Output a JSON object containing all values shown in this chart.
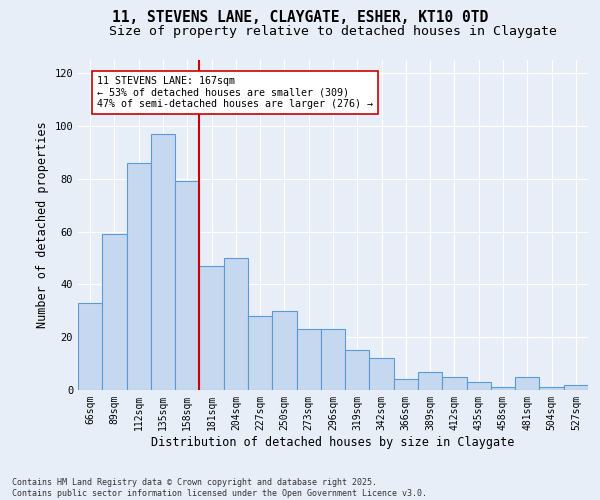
{
  "title_line1": "11, STEVENS LANE, CLAYGATE, ESHER, KT10 0TD",
  "title_line2": "Size of property relative to detached houses in Claygate",
  "xlabel": "Distribution of detached houses by size in Claygate",
  "ylabel": "Number of detached properties",
  "categories": [
    "66sqm",
    "89sqm",
    "112sqm",
    "135sqm",
    "158sqm",
    "181sqm",
    "204sqm",
    "227sqm",
    "250sqm",
    "273sqm",
    "296sqm",
    "319sqm",
    "342sqm",
    "366sqm",
    "389sqm",
    "412sqm",
    "435sqm",
    "458sqm",
    "481sqm",
    "504sqm",
    "527sqm"
  ],
  "values": [
    33,
    59,
    86,
    97,
    79,
    47,
    50,
    28,
    30,
    23,
    23,
    15,
    12,
    4,
    7,
    5,
    3,
    1,
    5,
    1,
    2
  ],
  "bar_color": "#c5d8f0",
  "bar_edge_color": "#5b9bd5",
  "bar_edge_width": 0.8,
  "vline_x": 4.5,
  "vline_color": "#cc0000",
  "vline_label": "11 STEVENS LANE: 167sqm",
  "annotation_line2": "← 53% of detached houses are smaller (309)",
  "annotation_line3": "47% of semi-detached houses are larger (276) →",
  "annotation_box_color": "#ffffff",
  "annotation_box_edge": "#cc0000",
  "ylim": [
    0,
    125
  ],
  "yticks": [
    0,
    20,
    40,
    60,
    80,
    100,
    120
  ],
  "bg_color": "#e8eef8",
  "grid_color": "#ffffff",
  "footnote_line1": "Contains HM Land Registry data © Crown copyright and database right 2025.",
  "footnote_line2": "Contains public sector information licensed under the Open Government Licence v3.0.",
  "title_fontsize": 10.5,
  "subtitle_fontsize": 9.5,
  "tick_fontsize": 7,
  "label_fontsize": 8.5,
  "annot_fontsize": 7.2,
  "footnote_fontsize": 6
}
